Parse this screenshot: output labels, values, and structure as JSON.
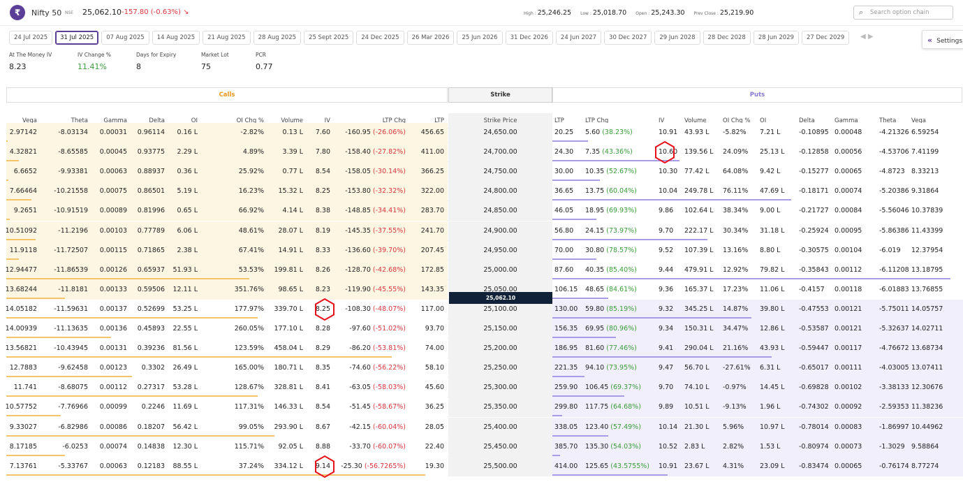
{
  "header": {
    "logo": "₹",
    "symbol": "Nifty 50",
    "exchange": "NSE",
    "price": "25,062.10",
    "change": "-157.80 (-0.63%)",
    "trend_icon": "↘",
    "high_label": "High :",
    "high": "25,246.25",
    "low_label": "Low :",
    "low": "25,018.70",
    "open_label": "Open :",
    "open": "25,243.30",
    "prevclose_label": "Prev Close :",
    "prevclose": "25,219.90",
    "search_placeholder": "Search option chain",
    "search_icon": "search-icon"
  },
  "expiries": [
    "24 Jul 2025",
    "31 Jul 2025",
    "07 Aug 2025",
    "14 Aug 2025",
    "21 Aug 2025",
    "28 Aug 2025",
    "25 Sept 2025",
    "24 Dec 2025",
    "26 Mar 2026",
    "25 Jun 2026",
    "31 Dec 2026",
    "24 Jun 2027",
    "30 Dec 2027",
    "29 Jun 2028",
    "28 Dec 2028",
    "28 Jun 2029",
    "27 Dec 2029"
  ],
  "selected_expiry": "31 Jul 2025",
  "settings_label": "Settings",
  "stats": [
    {
      "label": "At The Money IV",
      "value": "8.23"
    },
    {
      "label": "IV Change %",
      "value": "11.41%",
      "color": "#3a9c3a"
    },
    {
      "label": "Days for Expiry",
      "value": "8"
    },
    {
      "label": "Market Lot",
      "value": "75"
    },
    {
      "label": "PCR",
      "value": "0.77"
    }
  ],
  "sections": {
    "calls": "Calls",
    "strike": "Strike",
    "puts": "Puts"
  },
  "columns": {
    "calls": [
      "Vega",
      "Theta",
      "Gamma",
      "Delta",
      "OI",
      "OI Chg %",
      "Volume",
      "IV",
      "LTP Chg",
      "LTP"
    ],
    "strike": "Strike Price",
    "puts": [
      "LTP",
      "LTP Chg",
      "IV",
      "Volume",
      "OI Chg %",
      "OI",
      "Delta",
      "Gamma",
      "Theta",
      "Vega"
    ]
  },
  "spot_marker": "25,062.10",
  "rows": [
    {
      "strike": "24,650.00",
      "call": {
        "vega": "2.97142",
        "theta": "-8.03134",
        "gamma": "0.00031",
        "delta": "0.96114",
        "oi": "0.16 L",
        "oichg": "-2.82%",
        "vol": "0.13 L",
        "iv": "7.60",
        "ltpchg": "-160.95",
        "ltpchgpct": "(-26.06%)",
        "ltp": "456.65"
      },
      "put": {
        "ltp": "20.25",
        "ltpchg": "5.60",
        "ltpchgpct": "(38.23%)",
        "iv": "10.91",
        "vol": "43.93 L",
        "oichg": "-5.82%",
        "oi": "7.21 L",
        "delta": "-0.10895",
        "gamma": "0.00048",
        "theta": "-4.21326",
        "vega": "6.59254"
      },
      "call_bar": 0.003,
      "put_bar": 0.09
    },
    {
      "strike": "24,700.00",
      "call": {
        "vega": "4.32821",
        "theta": "-8.65585",
        "gamma": "0.00045",
        "delta": "0.93775",
        "oi": "2.29 L",
        "oichg": "4.89%",
        "vol": "3.39 L",
        "iv": "7.80",
        "ltpchg": "-158.40",
        "ltpchgpct": "(-27.82%)",
        "ltp": "411.00"
      },
      "put": {
        "ltp": "24.30",
        "ltpchg": "7.35",
        "ltpchgpct": "(43.36%)",
        "iv": "10.60",
        "vol": "139.56 L",
        "oichg": "24.09%",
        "oi": "25.13 L",
        "delta": "-0.12858",
        "gamma": "0.00056",
        "theta": "-4.53706",
        "vega": "7.41199"
      },
      "call_bar": 0.03,
      "put_bar": 0.32
    },
    {
      "strike": "24,750.00",
      "call": {
        "vega": "6.6652",
        "theta": "-9.93381",
        "gamma": "0.00063",
        "delta": "0.88937",
        "oi": "0.36 L",
        "oichg": "25.92%",
        "vol": "0.77 L",
        "iv": "8.54",
        "ltpchg": "-158.05",
        "ltpchgpct": "(-30.14%)",
        "ltp": "366.25"
      },
      "put": {
        "ltp": "30.00",
        "ltpchg": "10.35",
        "ltpchgpct": "(52.67%)",
        "iv": "10.30",
        "vol": "77.42 L",
        "oichg": "64.08%",
        "oi": "9.42 L",
        "delta": "-0.15277",
        "gamma": "0.00065",
        "theta": "-4.8723",
        "vega": "8.33213"
      },
      "call_bar": 0.005,
      "put_bar": 0.12
    },
    {
      "strike": "24,800.00",
      "call": {
        "vega": "7.66464",
        "theta": "-10.21558",
        "gamma": "0.00075",
        "delta": "0.86501",
        "oi": "5.19 L",
        "oichg": "16.23%",
        "vol": "15.32 L",
        "iv": "8.25",
        "ltpchg": "-153.80",
        "ltpchgpct": "(-32.32%)",
        "ltp": "322.00"
      },
      "put": {
        "ltp": "36.65",
        "ltpchg": "13.75",
        "ltpchgpct": "(60.04%)",
        "iv": "10.04",
        "vol": "249.78 L",
        "oichg": "76.11%",
        "oi": "47.69 L",
        "delta": "-0.18171",
        "gamma": "0.00074",
        "theta": "-5.20386",
        "vega": "9.31864"
      },
      "call_bar": 0.06,
      "put_bar": 0.6
    },
    {
      "strike": "24,850.00",
      "call": {
        "vega": "9.2651",
        "theta": "-10.91519",
        "gamma": "0.00089",
        "delta": "0.81996",
        "oi": "0.65 L",
        "oichg": "66.92%",
        "vol": "4.14 L",
        "iv": "8.38",
        "ltpchg": "-148.85",
        "ltpchgpct": "(-34.41%)",
        "ltp": "283.70"
      },
      "put": {
        "ltp": "46.05",
        "ltpchg": "18.95",
        "ltpchgpct": "(69.93%)",
        "iv": "9.86",
        "vol": "102.64 L",
        "oichg": "38.34%",
        "oi": "9.00 L",
        "delta": "-0.21727",
        "gamma": "0.00084",
        "theta": "-5.56046",
        "vega": "10.37839"
      },
      "call_bar": 0.008,
      "put_bar": 0.11
    },
    {
      "strike": "24,900.00",
      "call": {
        "vega": "10.51092",
        "theta": "-11.2196",
        "gamma": "0.00103",
        "delta": "0.77789",
        "oi": "6.06 L",
        "oichg": "48.61%",
        "vol": "28.07 L",
        "iv": "8.19",
        "ltpchg": "-145.35",
        "ltpchgpct": "(-37.55%)",
        "ltp": "241.70"
      },
      "put": {
        "ltp": "56.80",
        "ltpchg": "24.15",
        "ltpchgpct": "(73.97%)",
        "iv": "9.70",
        "vol": "222.17 L",
        "oichg": "30.34%",
        "oi": "31.18 L",
        "delta": "-0.25924",
        "gamma": "0.00095",
        "theta": "-5.86386",
        "vega": "11.43399"
      },
      "call_bar": 0.07,
      "put_bar": 0.39
    },
    {
      "strike": "24,950.00",
      "call": {
        "vega": "11.9118",
        "theta": "-11.72507",
        "gamma": "0.00115",
        "delta": "0.71865",
        "oi": "2.38 L",
        "oichg": "67.41%",
        "vol": "14.91 L",
        "iv": "8.33",
        "ltpchg": "-136.60",
        "ltpchgpct": "(-39.70%)",
        "ltp": "207.45"
      },
      "put": {
        "ltp": "70.00",
        "ltpchg": "30.80",
        "ltpchgpct": "(78.57%)",
        "iv": "9.52",
        "vol": "107.39 L",
        "oichg": "13.16%",
        "oi": "8.80 L",
        "delta": "-0.30575",
        "gamma": "0.00104",
        "theta": "-6.019",
        "vega": "12.37954"
      },
      "call_bar": 0.03,
      "put_bar": 0.11
    },
    {
      "strike": "25,000.00",
      "call": {
        "vega": "12.94477",
        "theta": "-11.86539",
        "gamma": "0.00126",
        "delta": "0.65937",
        "oi": "51.93 L",
        "oichg": "53.53%",
        "vol": "199.81 L",
        "iv": "8.26",
        "ltpchg": "-128.70",
        "ltpchgpct": "(-42.68%)",
        "ltp": "172.85"
      },
      "put": {
        "ltp": "87.60",
        "ltpchg": "40.35",
        "ltpchgpct": "(85.40%)",
        "iv": "9.44",
        "vol": "479.91 L",
        "oichg": "12.92%",
        "oi": "79.82 L",
        "delta": "-0.35843",
        "gamma": "0.00112",
        "theta": "-6.11208",
        "vega": "13.18795"
      },
      "call_bar": 0.58,
      "put_bar": 1.0
    },
    {
      "strike": "25,050.00",
      "call": {
        "vega": "13.68244",
        "theta": "-11.8181",
        "gamma": "0.00133",
        "delta": "0.59506",
        "oi": "12.11 L",
        "oichg": "351.76%",
        "vol": "98.65 L",
        "iv": "8.23",
        "ltpchg": "-119.90",
        "ltpchgpct": "(-45.55%)",
        "ltp": "143.35"
      },
      "put": {
        "ltp": "106.15",
        "ltpchg": "48.65",
        "ltpchgpct": "(84.61%)",
        "iv": "9.36",
        "vol": "165.37 L",
        "oichg": "17.23%",
        "oi": "11.06 L",
        "delta": "-0.4157",
        "gamma": "0.00118",
        "theta": "-6.01883",
        "vega": "13.76855"
      },
      "call_bar": 0.14,
      "put_bar": 0.14
    },
    {
      "strike": "25,100.00",
      "call": {
        "vega": "14.05182",
        "theta": "-11.59631",
        "gamma": "0.00137",
        "delta": "0.52699",
        "oi": "53.25 L",
        "oichg": "177.97%",
        "vol": "339.70 L",
        "iv": "8.25",
        "ltpchg": "-108.30",
        "ltpchgpct": "(-48.07%)",
        "ltp": "117.00"
      },
      "put": {
        "ltp": "130.00",
        "ltpchg": "59.80",
        "ltpchgpct": "(85.19%)",
        "iv": "9.32",
        "vol": "345.25 L",
        "oichg": "14.87%",
        "oi": "39.80 L",
        "delta": "-0.47553",
        "gamma": "0.00121",
        "theta": "-5.75011",
        "vega": "14.05757"
      },
      "call_bar": 0.6,
      "put_bar": 0.5
    },
    {
      "strike": "25,150.00",
      "call": {
        "vega": "14.00939",
        "theta": "-11.13635",
        "gamma": "0.00136",
        "delta": "0.45893",
        "oi": "22.55 L",
        "oichg": "260.05%",
        "vol": "177.10 L",
        "iv": "8.28",
        "ltpchg": "-97.60",
        "ltpchgpct": "(-51.02%)",
        "ltp": "93.70"
      },
      "put": {
        "ltp": "156.35",
        "ltpchg": "69.95",
        "ltpchgpct": "(80.96%)",
        "iv": "9.34",
        "vol": "150.31 L",
        "oichg": "34.47%",
        "oi": "12.86 L",
        "delta": "-0.53587",
        "gamma": "0.00121",
        "theta": "-5.32637",
        "vega": "14.02711"
      },
      "call_bar": 0.25,
      "put_bar": 0.16
    },
    {
      "strike": "25,200.00",
      "call": {
        "vega": "13.56821",
        "theta": "-10.43945",
        "gamma": "0.00131",
        "delta": "0.39236",
        "oi": "81.56 L",
        "oichg": "123.59%",
        "vol": "458.04 L",
        "iv": "8.29",
        "ltpchg": "-86.20",
        "ltpchgpct": "(-53.81%)",
        "ltp": "74.00"
      },
      "put": {
        "ltp": "186.95",
        "ltpchg": "81.60",
        "ltpchgpct": "(77.46%)",
        "iv": "9.41",
        "vol": "290.04 L",
        "oichg": "21.16%",
        "oi": "43.93 L",
        "delta": "-0.59447",
        "gamma": "0.00117",
        "theta": "-4.76672",
        "vega": "13.68734"
      },
      "call_bar": 0.92,
      "put_bar": 0.55
    },
    {
      "strike": "25,250.00",
      "call": {
        "vega": "12.7883",
        "theta": "-9.62458",
        "gamma": "0.00123",
        "delta": "0.3302",
        "oi": "26.49 L",
        "oichg": "165.00%",
        "vol": "180.71 L",
        "iv": "8.35",
        "ltpchg": "-74.60",
        "ltpchgpct": "(-56.22%)",
        "ltp": "58.10"
      },
      "put": {
        "ltp": "221.35",
        "ltpchg": "94.10",
        "ltpchgpct": "(73.95%)",
        "iv": "9.47",
        "vol": "56.70 L",
        "oichg": "-27.61%",
        "oi": "6.31 L",
        "delta": "-0.65017",
        "gamma": "0.00111",
        "theta": "-4.03005",
        "vega": "13.07411"
      },
      "call_bar": 0.3,
      "put_bar": 0.08
    },
    {
      "strike": "25,300.00",
      "call": {
        "vega": "11.741",
        "theta": "-8.68075",
        "gamma": "0.00112",
        "delta": "0.27317",
        "oi": "53.28 L",
        "oichg": "128.67%",
        "vol": "328.81 L",
        "iv": "8.41",
        "ltpchg": "-63.05",
        "ltpchgpct": "(-58.03%)",
        "ltp": "45.60"
      },
      "put": {
        "ltp": "259.90",
        "ltpchg": "106.45",
        "ltpchgpct": "(69.37%)",
        "iv": "9.70",
        "vol": "74.10 L",
        "oichg": "-0.97%",
        "oi": "14.45 L",
        "delta": "-0.69828",
        "gamma": "0.00102",
        "theta": "-3.38133",
        "vega": "12.30676"
      },
      "call_bar": 0.6,
      "put_bar": 0.18
    },
    {
      "strike": "25,350.00",
      "call": {
        "vega": "10.57752",
        "theta": "-7.76966",
        "gamma": "0.00099",
        "delta": "0.2246",
        "oi": "11.69 L",
        "oichg": "117.31%",
        "vol": "146.33 L",
        "iv": "8.54",
        "ltpchg": "-51.45",
        "ltpchgpct": "(-58.67%)",
        "ltp": "36.25"
      },
      "put": {
        "ltp": "299.80",
        "ltpchg": "117.75",
        "ltpchgpct": "(64.68%)",
        "iv": "9.89",
        "vol": "10.51 L",
        "oichg": "-9.13%",
        "oi": "1.96 L",
        "delta": "-0.74302",
        "gamma": "0.00092",
        "theta": "-2.59353",
        "vega": "11.38236"
      },
      "call_bar": 0.13,
      "put_bar": 0.025
    },
    {
      "strike": "25,400.00",
      "call": {
        "vega": "9.33027",
        "theta": "-6.82986",
        "gamma": "0.00086",
        "delta": "0.18207",
        "oi": "56.42 L",
        "oichg": "99.05%",
        "vol": "293.90 L",
        "iv": "8.67",
        "ltpchg": "-42.15",
        "ltpchgpct": "(-60.04%)",
        "ltp": "28.05"
      },
      "put": {
        "ltp": "338.05",
        "ltpchg": "123.40",
        "ltpchgpct": "(57.49%)",
        "iv": "10.14",
        "vol": "21.30 L",
        "oichg": "5.96%",
        "oi": "10.97 L",
        "delta": "-0.78014",
        "gamma": "0.00083",
        "theta": "-1.86997",
        "vega": "10.44962"
      },
      "call_bar": 0.64,
      "put_bar": 0.14
    },
    {
      "strike": "25,450.00",
      "call": {
        "vega": "8.17185",
        "theta": "-6.0253",
        "gamma": "0.00074",
        "delta": "0.14838",
        "oi": "12.30 L",
        "oichg": "115.71%",
        "vol": "92.05 L",
        "iv": "8.88",
        "ltpchg": "-33.70",
        "ltpchgpct": "(-60.07%)",
        "ltp": "22.40"
      },
      "put": {
        "ltp": "385.70",
        "ltpchg": "135.30",
        "ltpchgpct": "(54.03%)",
        "iv": "10.52",
        "vol": "2.83 L",
        "oichg": "2.82%",
        "oi": "1.53 L",
        "delta": "-0.80974",
        "gamma": "0.00073",
        "theta": "-1.3029",
        "vega": "9.58864"
      },
      "call_bar": 0.14,
      "put_bar": 0.02
    },
    {
      "strike": "25,500.00",
      "call": {
        "vega": "7.13761",
        "theta": "-5.33767",
        "gamma": "0.00063",
        "delta": "0.12183",
        "oi": "88.55 L",
        "oichg": "37.24%",
        "vol": "334.12 L",
        "iv": "9.14",
        "ltpchg": "-25.30",
        "ltpchgpct": "(-56.7265%)",
        "ltp": "19.30"
      },
      "put": {
        "ltp": "414.00",
        "ltpchg": "125.65",
        "ltpchgpct": "(43.5755%)",
        "iv": "10.91",
        "vol": "23.67 L",
        "oichg": "4.31%",
        "oi": "23.09 L",
        "delta": "-0.83474",
        "gamma": "0.00065",
        "theta": "-0.76174",
        "vega": "8.77274"
      },
      "call_bar": 1.0,
      "put_bar": 0.29
    }
  ],
  "colors": {
    "itm_call_bg": "#fdf6e3",
    "itm_put_bg": "#f1effb",
    "strike_bg": "#f2f2f2",
    "call_bar": "#f3c46a",
    "put_bar": "#a99be6",
    "neg": "#d9363e",
    "pos": "#3a9c3a",
    "annotation": "#e8101a"
  },
  "annotations": [
    {
      "row": 1,
      "field": "put.iv"
    },
    {
      "row": 9,
      "field": "call.iv"
    },
    {
      "row": 17,
      "field": "call.iv"
    }
  ]
}
